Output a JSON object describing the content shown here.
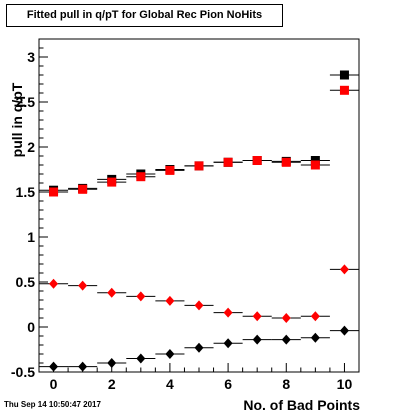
{
  "chart_data": {
    "type": "scatter",
    "title": "Fitted pull in q/pT for Global Rec Pion NoHits",
    "xlabel": "No. of Bad Points",
    "ylabel": "pull in q/pT",
    "xlim": [
      -0.5,
      10.5
    ],
    "ylim": [
      -0.5,
      3.2
    ],
    "x_ticks": [
      0,
      2,
      4,
      6,
      8,
      10
    ],
    "y_ticks": [
      -0.5,
      0,
      0.5,
      1,
      1.5,
      2,
      2.5,
      3
    ],
    "y_tick_labels": [
      "-0.5",
      "0",
      "0.5",
      "1",
      "1.5",
      "2",
      "2.5",
      "3"
    ],
    "grid": false,
    "legend": "none",
    "series": [
      {
        "marker": "square",
        "color": "#000000",
        "x": [
          0,
          1,
          2,
          3,
          4,
          5,
          6,
          7,
          8,
          9,
          10
        ],
        "y": [
          1.52,
          1.54,
          1.64,
          1.7,
          1.75,
          1.79,
          1.83,
          1.85,
          1.84,
          1.85,
          2.8
        ]
      },
      {
        "marker": "square",
        "color": "#ff0000",
        "x": [
          0,
          1,
          2,
          3,
          4,
          5,
          6,
          7,
          8,
          9,
          10
        ],
        "y": [
          1.5,
          1.53,
          1.61,
          1.67,
          1.74,
          1.79,
          1.83,
          1.85,
          1.83,
          1.8,
          2.63
        ]
      },
      {
        "marker": "diamond",
        "color": "#ff0000",
        "x": [
          0,
          1,
          2,
          3,
          4,
          5,
          6,
          7,
          8,
          9,
          10
        ],
        "y": [
          0.48,
          0.46,
          0.38,
          0.34,
          0.29,
          0.24,
          0.16,
          0.12,
          0.1,
          0.12,
          0.64
        ]
      },
      {
        "marker": "diamond",
        "color": "#000000",
        "x": [
          0,
          1,
          2,
          3,
          4,
          5,
          6,
          7,
          8,
          9,
          10
        ],
        "y": [
          -0.44,
          -0.44,
          -0.4,
          -0.35,
          -0.3,
          -0.23,
          -0.18,
          -0.14,
          -0.14,
          -0.12,
          -0.04
        ]
      }
    ]
  },
  "footer": {
    "timestamp": "Thu Sep 14 10:50:47 2017"
  }
}
